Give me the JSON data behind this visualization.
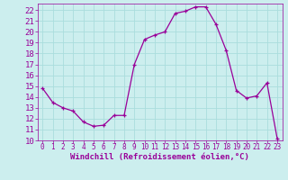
{
  "x": [
    0,
    1,
    2,
    3,
    4,
    5,
    6,
    7,
    8,
    9,
    10,
    11,
    12,
    13,
    14,
    15,
    16,
    17,
    18,
    19,
    20,
    21,
    22,
    23
  ],
  "y": [
    14.8,
    13.5,
    13.0,
    12.7,
    11.7,
    11.3,
    11.4,
    12.3,
    12.3,
    17.0,
    19.3,
    19.7,
    20.0,
    21.7,
    21.9,
    22.3,
    22.3,
    20.7,
    18.3,
    14.6,
    13.9,
    14.1,
    15.3,
    10.2
  ],
  "xlim": [
    -0.5,
    23.5
  ],
  "ylim": [
    10,
    22.6
  ],
  "yticks": [
    10,
    11,
    12,
    13,
    14,
    15,
    16,
    17,
    18,
    19,
    20,
    21,
    22
  ],
  "xticks": [
    0,
    1,
    2,
    3,
    4,
    5,
    6,
    7,
    8,
    9,
    10,
    11,
    12,
    13,
    14,
    15,
    16,
    17,
    18,
    19,
    20,
    21,
    22,
    23
  ],
  "xlabel": "Windchill (Refroidissement éolien,°C)",
  "line_color": "#990099",
  "marker_color": "#990099",
  "bg_color": "#cceeee",
  "grid_color": "#aadddd",
  "text_color": "#990099",
  "tick_color": "#990099",
  "xlabel_fontsize": 6.5,
  "ytick_fontsize": 6.5,
  "xtick_fontsize": 5.5
}
